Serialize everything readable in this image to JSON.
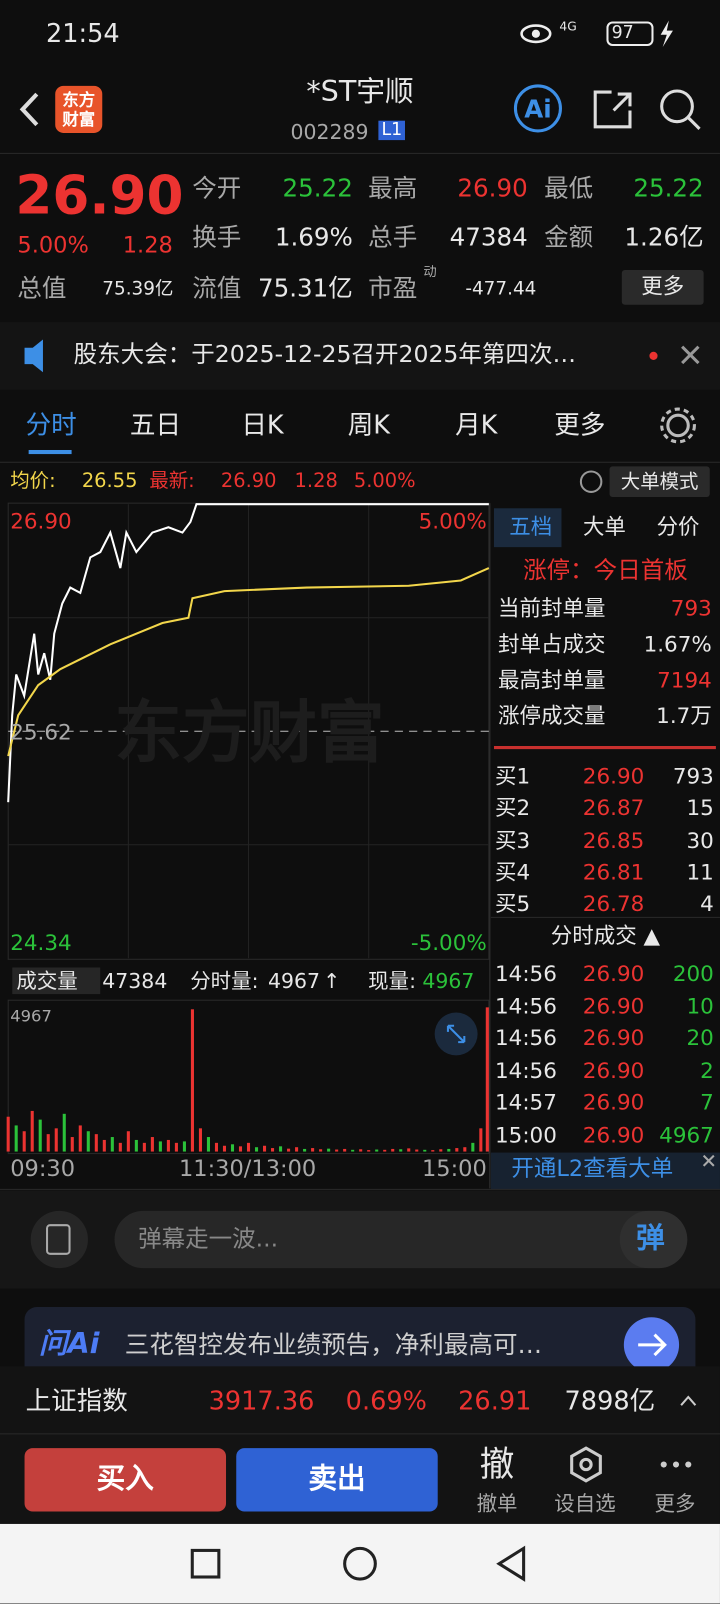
{
  "status": {
    "time": "21:54",
    "network": "4G",
    "battery": "97"
  },
  "header": {
    "logo": "东方财富",
    "title": "*ST宇顺",
    "code": "002289",
    "level": "L1"
  },
  "quote": {
    "price": "26.90",
    "change_pct": "5.00%",
    "change": "1.28",
    "stats": [
      {
        "label": "今开",
        "value": "25.22"
      },
      {
        "label": "最高",
        "value": "26.90"
      },
      {
        "label": "最低",
        "value": "25.22"
      },
      {
        "label": "换手",
        "value": "1.69%"
      },
      {
        "label": "总手",
        "value": "47384"
      },
      {
        "label": "金额",
        "value": "1.26亿"
      },
      {
        "label": "总值",
        "value": "75.39亿"
      },
      {
        "label": "流值",
        "value": "75.31亿"
      },
      {
        "label": "市盈",
        "value": "-477.44"
      }
    ],
    "pe_tag": "动",
    "more": "更多"
  },
  "notice": "股东大会：于2025-12-25召开2025年第四次…",
  "tabs": [
    "分时",
    "五日",
    "日K",
    "周K",
    "月K",
    "更多"
  ],
  "info": {
    "avg_label": "均价:",
    "avg": "26.55",
    "last_label": "最新:",
    "last": "26.90",
    "change": "1.28",
    "change_pct": "5.00%",
    "mode": "大单模式"
  },
  "intraday": {
    "price_top": "26.90",
    "price_mid": "25.62",
    "price_bottom": "24.34",
    "pct_top": "5.00%",
    "pct_bottom": "-5.00%",
    "watermark": "东方财富",
    "minutes": [
      0,
      2,
      4,
      8,
      13,
      15,
      18,
      21,
      23,
      27,
      31,
      36,
      41,
      46,
      51,
      56,
      59,
      64,
      72,
      80,
      87,
      91,
      94,
      240
    ],
    "price": [
      25.22,
      25.71,
      25.94,
      25.82,
      26.17,
      25.94,
      26.06,
      25.91,
      26.17,
      26.34,
      26.43,
      26.4,
      26.6,
      26.63,
      26.74,
      26.54,
      26.74,
      26.63,
      26.74,
      26.77,
      26.74,
      26.8,
      26.9,
      26.9
    ],
    "avg_minutes": [
      0,
      5,
      15,
      26,
      51,
      77,
      90,
      92,
      108,
      149,
      200,
      226,
      240
    ],
    "avg": [
      25.48,
      25.71,
      25.88,
      25.97,
      26.11,
      26.23,
      26.26,
      26.37,
      26.41,
      26.43,
      26.44,
      26.47,
      26.54
    ],
    "volume_label": "成交量",
    "volume_total": "47384",
    "bar_label": "分时量:",
    "bar_value": "4967",
    "bar_arrow": "↑",
    "now_label": "现量:",
    "now_value": "4967",
    "volume_max": "4967",
    "volume_step": 4,
    "volume": [
      1200,
      900,
      700,
      1400,
      1100,
      600,
      800,
      1300,
      500,
      900,
      700,
      600,
      400,
      500,
      300,
      700,
      400,
      300,
      500,
      350,
      400,
      300,
      350,
      4900,
      800,
      500,
      300,
      200,
      250,
      180,
      300,
      150,
      200,
      120,
      180,
      100,
      150,
      90,
      120,
      80,
      100,
      70,
      90,
      60,
      80,
      50,
      70,
      60,
      90,
      80,
      110,
      70,
      60,
      50,
      80,
      90,
      120,
      150,
      300,
      800,
      4967
    ],
    "time_labels": [
      "09:30",
      "11:30/13:00",
      "15:00"
    ]
  },
  "panel": {
    "tabs": [
      "五档",
      "大单",
      "分价"
    ],
    "limit": "涨停：今日首板",
    "rows": [
      {
        "label": "当前封单量",
        "value": "793"
      },
      {
        "label": "封单占成交",
        "value": "1.67%"
      },
      {
        "label": "最高封单量",
        "value": "7194"
      },
      {
        "label": "涨停成交量",
        "value": "1.7万"
      }
    ],
    "bids": [
      {
        "label": "买1",
        "price": "26.90",
        "volume": "793"
      },
      {
        "label": "买2",
        "price": "26.87",
        "volume": "15"
      },
      {
        "label": "买3",
        "price": "26.85",
        "volume": "30"
      },
      {
        "label": "买4",
        "price": "26.81",
        "volume": "11"
      },
      {
        "label": "买5",
        "price": "26.78",
        "volume": "4"
      }
    ],
    "trades_title": "分时成交 ▲",
    "trades": [
      {
        "time": "14:56",
        "price": "26.90",
        "volume": "200"
      },
      {
        "time": "14:56",
        "price": "26.90",
        "volume": "10"
      },
      {
        "time": "14:56",
        "price": "26.90",
        "volume": "20"
      },
      {
        "time": "14:56",
        "price": "26.90",
        "volume": "2"
      },
      {
        "time": "14:57",
        "price": "26.90",
        "volume": "7"
      },
      {
        "time": "15:00",
        "price": "26.90",
        "volume": "4967"
      }
    ],
    "l2": "开通L2查看大单"
  },
  "comment": {
    "placeholder": "弹幕走一波...",
    "danmu": "弹"
  },
  "ai": {
    "brand": "问Ai",
    "text": "三花智控发布业绩预告，净利最高可…"
  },
  "index": {
    "name": "上证指数",
    "value": "3917.36",
    "pct": "0.69%",
    "extra": "26.91",
    "amount": "7898亿"
  },
  "actions": {
    "buy": "买入",
    "sell": "卖出",
    "cancel_icon": "撤",
    "cancel": "撤单",
    "watch": "设自选",
    "more": "更多"
  }
}
